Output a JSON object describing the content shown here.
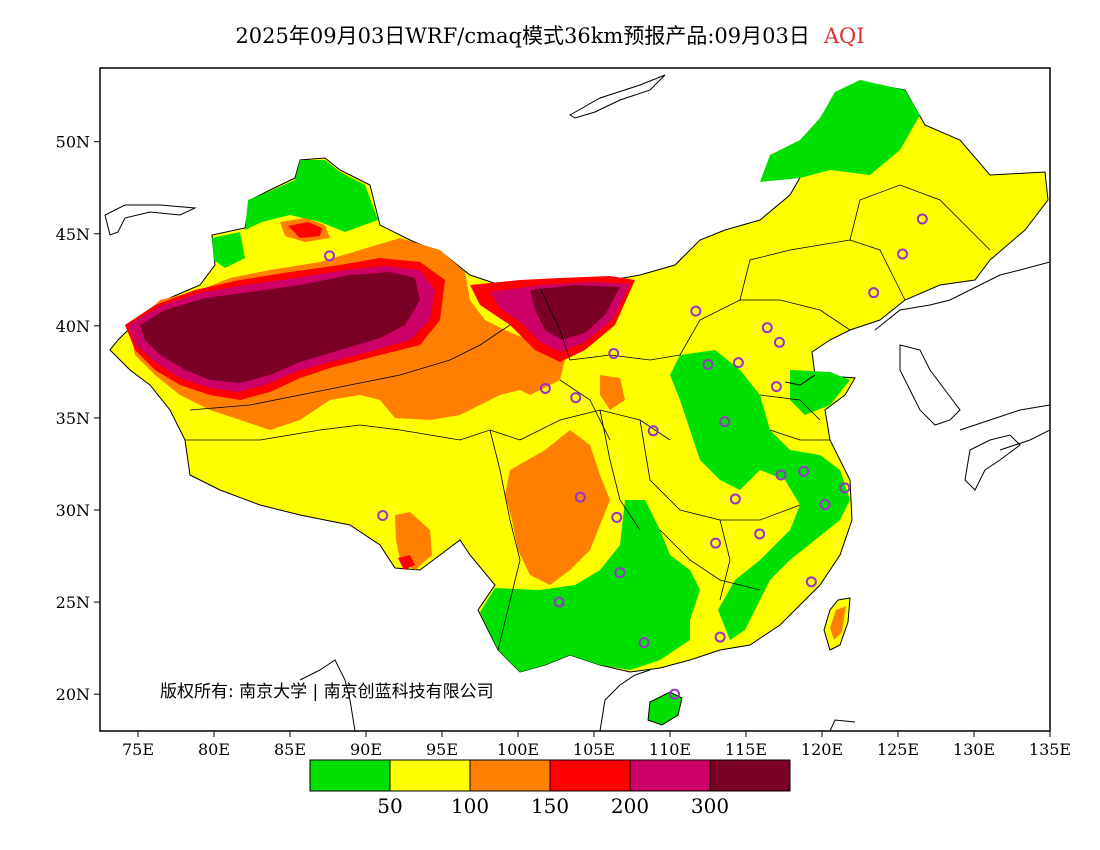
{
  "title": {
    "main": "2025年09月03日WRF/cmaq模式36km预报产品:09月03日",
    "variable": "AQI"
  },
  "copyright": "版权所有: 南京大学 | 南京创蓝科技有限公司",
  "axes": {
    "lon_ticks": [
      "75E",
      "80E",
      "85E",
      "90E",
      "95E",
      "100E",
      "105E",
      "110E",
      "115E",
      "120E",
      "125E",
      "130E",
      "135E"
    ],
    "lat_ticks": [
      "20N",
      "25N",
      "30N",
      "35N",
      "40N",
      "45N",
      "50N"
    ]
  },
  "colorbar": {
    "colors": [
      "#00e000",
      "#ffff00",
      "#ff8000",
      "#ff0000",
      "#cc0066",
      "#7a0026"
    ],
    "labels": [
      "50",
      "100",
      "150",
      "200",
      "300"
    ]
  },
  "stations_color": "#9933cc",
  "stations": [
    {
      "lon": 126.6,
      "lat": 45.8
    },
    {
      "lon": 125.3,
      "lat": 43.9
    },
    {
      "lon": 123.4,
      "lat": 41.8
    },
    {
      "lon": 116.4,
      "lat": 39.9
    },
    {
      "lon": 117.2,
      "lat": 39.1
    },
    {
      "lon": 114.5,
      "lat": 38.0
    },
    {
      "lon": 112.5,
      "lat": 37.9
    },
    {
      "lon": 111.7,
      "lat": 40.8
    },
    {
      "lon": 106.3,
      "lat": 38.5
    },
    {
      "lon": 103.8,
      "lat": 36.1
    },
    {
      "lon": 101.8,
      "lat": 36.6
    },
    {
      "lon": 108.9,
      "lat": 34.3
    },
    {
      "lon": 113.6,
      "lat": 34.8
    },
    {
      "lon": 117.0,
      "lat": 36.7
    },
    {
      "lon": 117.3,
      "lat": 31.9
    },
    {
      "lon": 118.8,
      "lat": 32.1
    },
    {
      "lon": 121.5,
      "lat": 31.2
    },
    {
      "lon": 120.2,
      "lat": 30.3
    },
    {
      "lon": 114.3,
      "lat": 30.6
    },
    {
      "lon": 115.9,
      "lat": 28.7
    },
    {
      "lon": 113.0,
      "lat": 28.2
    },
    {
      "lon": 106.5,
      "lat": 29.6
    },
    {
      "lon": 104.1,
      "lat": 30.7
    },
    {
      "lon": 106.7,
      "lat": 26.6
    },
    {
      "lon": 102.7,
      "lat": 25.0
    },
    {
      "lon": 108.3,
      "lat": 22.8
    },
    {
      "lon": 113.3,
      "lat": 23.1
    },
    {
      "lon": 119.3,
      "lat": 26.1
    },
    {
      "lon": 110.3,
      "lat": 20.0
    },
    {
      "lon": 91.1,
      "lat": 29.7
    },
    {
      "lon": 87.6,
      "lat": 43.8
    }
  ]
}
